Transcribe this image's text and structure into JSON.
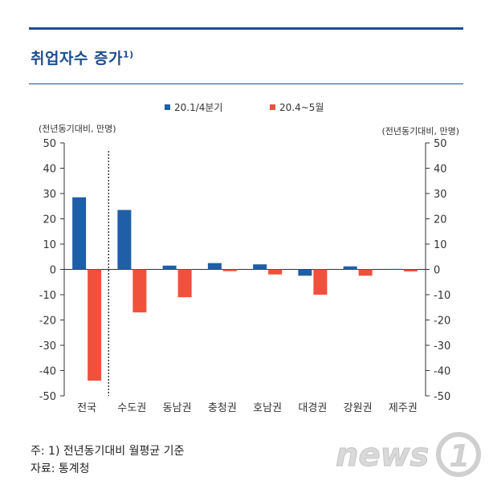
{
  "title": "취업자수 증가",
  "title_footnote_mark": "1)",
  "footnote": {
    "note": "주: 1) 전년동기대비 월평균 기준",
    "source": "자료: 통계청"
  },
  "watermark": "news1",
  "chart_data": {
    "type": "bar",
    "unit_left": "(전년동기대비, 만명)",
    "unit_right": "(전년동기대비, 만명)",
    "ylim": [
      -50,
      50
    ],
    "yticks": [
      50,
      40,
      30,
      20,
      10,
      0,
      -10,
      -20,
      -30,
      -40,
      -50
    ],
    "ytick_labels": [
      "50",
      "40",
      "30",
      "20",
      "10",
      "0",
      "-10",
      "-20",
      "-30",
      "-40",
      "-50"
    ],
    "categories": [
      "전국",
      "수도권",
      "동남권",
      "충청권",
      "호남권",
      "대경권",
      "강원권",
      "제주권"
    ],
    "series": [
      {
        "name": "20.1/4분기",
        "color": "#1f5fa8",
        "values": [
          28.5,
          23.5,
          1.5,
          2.5,
          2.0,
          -2.5,
          1.2,
          0.2
        ]
      },
      {
        "name": "20.4~5월",
        "color": "#f0503c",
        "values": [
          -44.0,
          -17.0,
          -11.0,
          -0.7,
          -2.0,
          -10.0,
          -2.5,
          -0.8
        ]
      }
    ],
    "legend_position": "top-center",
    "divider_after_category": "전국"
  }
}
